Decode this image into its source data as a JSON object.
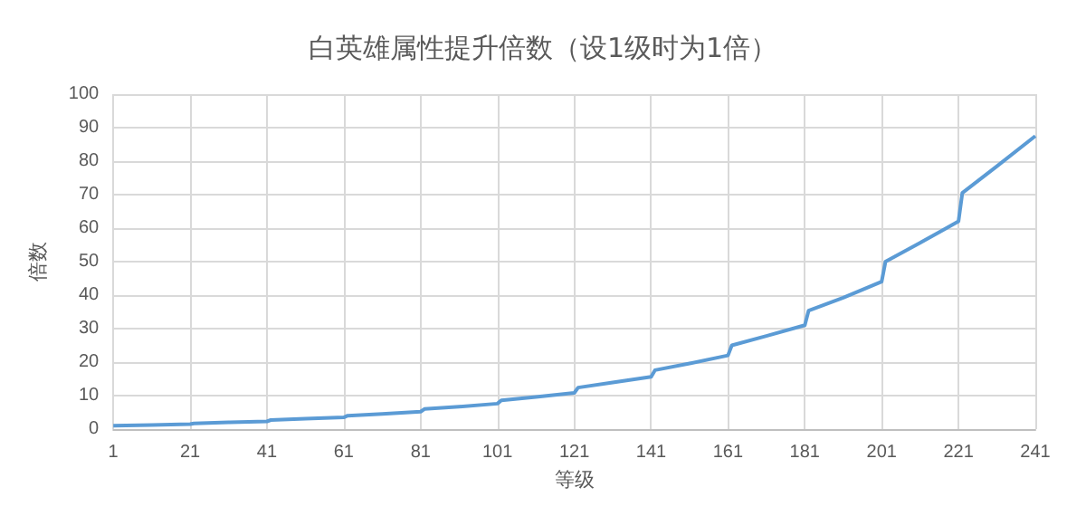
{
  "chart_data": {
    "type": "line",
    "title": "白英雄属性提升倍数（设1级时为1倍）",
    "xlabel": "等级",
    "ylabel": "倍数",
    "x": [
      1,
      11,
      21,
      22,
      31,
      41,
      42,
      51,
      61,
      62,
      71,
      81,
      82,
      91,
      101,
      102,
      111,
      121,
      122,
      131,
      141,
      142,
      151,
      161,
      162,
      171,
      181,
      182,
      191,
      201,
      202,
      211,
      221,
      222,
      231,
      241
    ],
    "series": [
      {
        "color": "#5b9bd5",
        "values": [
          1,
          1.2,
          1.5,
          1.7,
          2,
          2.3,
          2.7,
          3.1,
          3.5,
          4,
          4.5,
          5.2,
          6,
          6.7,
          7.6,
          8.6,
          9.6,
          10.8,
          12.4,
          13.9,
          15.6,
          17.6,
          19.6,
          22,
          25,
          27.8,
          31,
          35.4,
          39.2,
          44,
          50,
          55.6,
          62,
          70.5,
          78.5,
          87.5
        ]
      }
    ],
    "xlim": [
      1,
      241
    ],
    "xticks": [
      1,
      21,
      41,
      61,
      81,
      101,
      121,
      141,
      161,
      181,
      201,
      221,
      241
    ],
    "ylim": [
      0,
      100
    ],
    "yticks": [
      0,
      10,
      20,
      30,
      40,
      50,
      60,
      70,
      80,
      90,
      100
    ],
    "grid": true,
    "marker": "none",
    "line_style": "solid"
  }
}
